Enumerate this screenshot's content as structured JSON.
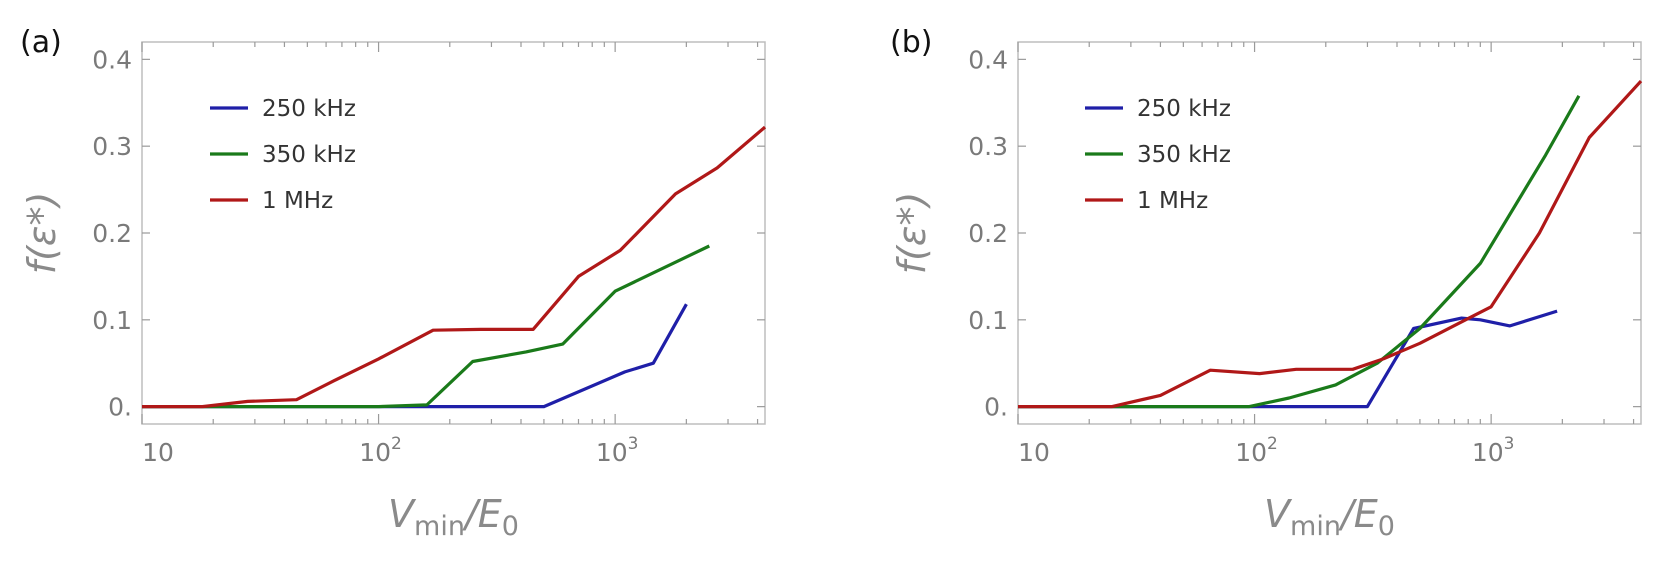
{
  "chart_data": [
    {
      "panel": "(a)",
      "type": "line",
      "xscale": "log",
      "xlabel": "Vmin/E0",
      "ylabel": "f(ε*)",
      "xlim": [
        10,
        4300
      ],
      "ylim": [
        -0.02,
        0.42
      ],
      "yticks": [
        "0.",
        "0.1",
        "0.2",
        "0.3",
        "0.4"
      ],
      "xticks": [
        {
          "base": "10",
          "exp": ""
        },
        {
          "base": "10",
          "exp": "2"
        },
        {
          "base": "10",
          "exp": "3"
        }
      ],
      "legend_position": "top-left",
      "series": [
        {
          "name": "250 kHz",
          "color": "#1f1fa8",
          "x": [
            10,
            500,
            1100,
            1450,
            2000
          ],
          "y": [
            0,
            0,
            0.04,
            0.05,
            0.118
          ]
        },
        {
          "name": "350 kHz",
          "color": "#1a7a1a",
          "x": [
            10,
            100,
            160,
            250,
            420,
            600,
            1000,
            2500
          ],
          "y": [
            0,
            0,
            0.002,
            0.052,
            0.063,
            0.072,
            0.133,
            0.185
          ]
        },
        {
          "name": "1 MHz",
          "color": "#b01818",
          "x": [
            10,
            18,
            28,
            45,
            65,
            100,
            170,
            270,
            450,
            700,
            1050,
            1800,
            2700,
            4300
          ],
          "y": [
            0,
            0,
            0.006,
            0.008,
            0.03,
            0.055,
            0.088,
            0.089,
            0.089,
            0.15,
            0.18,
            0.245,
            0.275,
            0.322
          ]
        }
      ]
    },
    {
      "panel": "(b)",
      "type": "line",
      "xscale": "log",
      "xlabel": "Vmin/E0",
      "ylabel": "f(ε*)",
      "xlim": [
        10,
        4300
      ],
      "ylim": [
        -0.02,
        0.42
      ],
      "yticks": [
        "0.",
        "0.1",
        "0.2",
        "0.3",
        "0.4"
      ],
      "xticks": [
        {
          "base": "10",
          "exp": ""
        },
        {
          "base": "10",
          "exp": "2"
        },
        {
          "base": "10",
          "exp": "3"
        }
      ],
      "legend_position": "top-left",
      "series": [
        {
          "name": "250 kHz",
          "color": "#1f1fa8",
          "x": [
            10,
            300,
            470,
            750,
            900,
            1200,
            1900
          ],
          "y": [
            0,
            0,
            0.09,
            0.102,
            0.1,
            0.093,
            0.11
          ]
        },
        {
          "name": "350 kHz",
          "color": "#1a7a1a",
          "x": [
            10,
            95,
            140,
            220,
            330,
            500,
            900,
            1700,
            2350
          ],
          "y": [
            0,
            0,
            0.01,
            0.025,
            0.05,
            0.09,
            0.165,
            0.29,
            0.358
          ]
        },
        {
          "name": "1 MHz",
          "color": "#b01818",
          "x": [
            10,
            25,
            40,
            65,
            105,
            150,
            260,
            350,
            500,
            780,
            1000,
            1600,
            2600,
            4300
          ],
          "y": [
            0,
            0,
            0.013,
            0.042,
            0.038,
            0.043,
            0.043,
            0.055,
            0.073,
            0.1,
            0.115,
            0.2,
            0.31,
            0.375
          ]
        }
      ]
    }
  ]
}
